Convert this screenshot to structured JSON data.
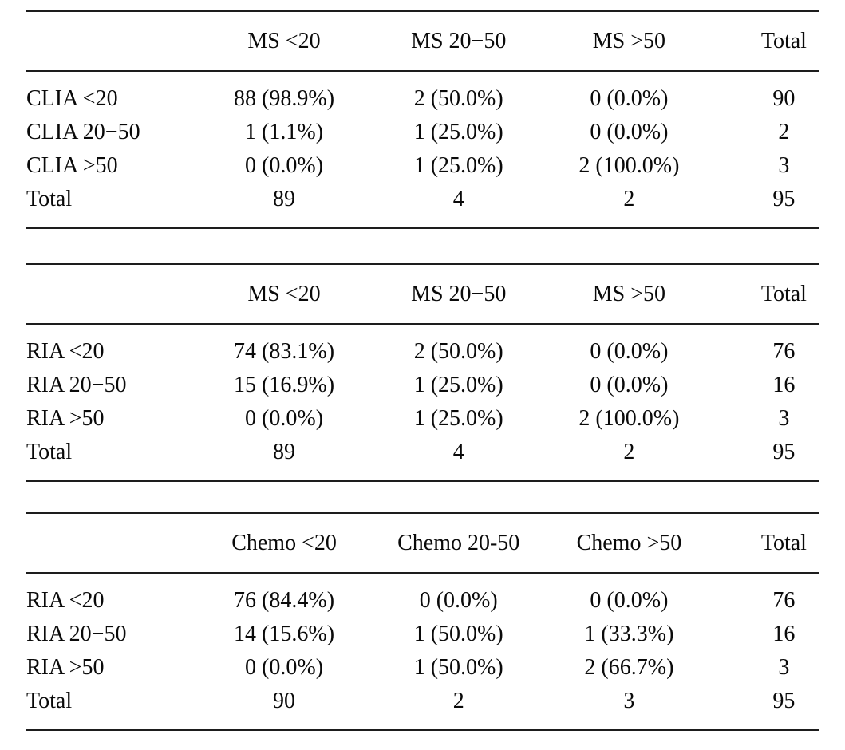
{
  "page": {
    "background_color": "#ffffff",
    "text_color": "#0a0a0a",
    "rule_color": "#1d1d1d"
  },
  "tables": [
    {
      "name": "clia-vs-ms-crosstab",
      "columns": [
        "",
        "MS <20",
        "MS 20−50",
        "MS >50",
        "Total"
      ],
      "rows": [
        [
          "CLIA <20",
          "88 (98.9%)",
          "2 (50.0%)",
          "0 (0.0%)",
          "90"
        ],
        [
          "CLIA 20−50",
          "1 (1.1%)",
          "1 (25.0%)",
          "0 (0.0%)",
          "2"
        ],
        [
          "CLIA >50",
          "0 (0.0%)",
          "1 (25.0%)",
          "2 (100.0%)",
          "3"
        ],
        [
          "Total",
          "89",
          "4",
          "2",
          "95"
        ]
      ]
    },
    {
      "name": "ria-vs-ms-crosstab",
      "columns": [
        "",
        "MS <20",
        "MS 20−50",
        "MS >50",
        "Total"
      ],
      "rows": [
        [
          "RIA <20",
          "74 (83.1%)",
          "2 (50.0%)",
          "0 (0.0%)",
          "76"
        ],
        [
          "RIA 20−50",
          "15 (16.9%)",
          "1 (25.0%)",
          "0 (0.0%)",
          "16"
        ],
        [
          "RIA >50",
          "0 (0.0%)",
          "1 (25.0%)",
          "2 (100.0%)",
          "3"
        ],
        [
          "Total",
          "89",
          "4",
          "2",
          "95"
        ]
      ]
    },
    {
      "name": "ria-vs-chemo-crosstab",
      "columns": [
        "",
        "Chemo <20",
        "Chemo 20-50",
        "Chemo >50",
        "Total"
      ],
      "rows": [
        [
          "RIA <20",
          "76 (84.4%)",
          "0 (0.0%)",
          "0 (0.0%)",
          "76"
        ],
        [
          "RIA 20−50",
          "14 (15.6%)",
          "1 (50.0%)",
          "1 (33.3%)",
          "16"
        ],
        [
          "RIA >50",
          "0 (0.0%)",
          "1 (50.0%)",
          "2 (66.7%)",
          "3"
        ],
        [
          "Total",
          "90",
          "2",
          "3",
          "95"
        ]
      ]
    }
  ]
}
